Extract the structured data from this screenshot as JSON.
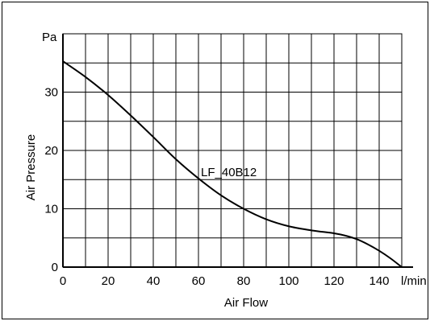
{
  "chart_data": {
    "type": "line",
    "title": "",
    "xlabel": "Air Flow",
    "ylabel": "Air Pressure",
    "x_unit": "l/min",
    "y_unit": "Pa",
    "xlim": [
      0,
      150
    ],
    "ylim": [
      0,
      40
    ],
    "x_ticks": [
      0,
      20,
      40,
      60,
      80,
      100,
      120,
      140
    ],
    "y_ticks": [
      0,
      10,
      20,
      30
    ],
    "grid": true,
    "colors": {
      "line": "#000000",
      "grid": "#000000"
    },
    "series": [
      {
        "name": "LF_40B12",
        "x": [
          0,
          10,
          20,
          30,
          40,
          50,
          60,
          70,
          80,
          90,
          100,
          110,
          120,
          125,
          130,
          135,
          140,
          145,
          150
        ],
        "y": [
          35.3,
          32.6,
          29.5,
          26.0,
          22.3,
          18.5,
          15.2,
          12.3,
          10.0,
          8.2,
          7.0,
          6.3,
          5.8,
          5.4,
          4.8,
          3.9,
          2.8,
          1.5,
          0
        ]
      }
    ]
  }
}
